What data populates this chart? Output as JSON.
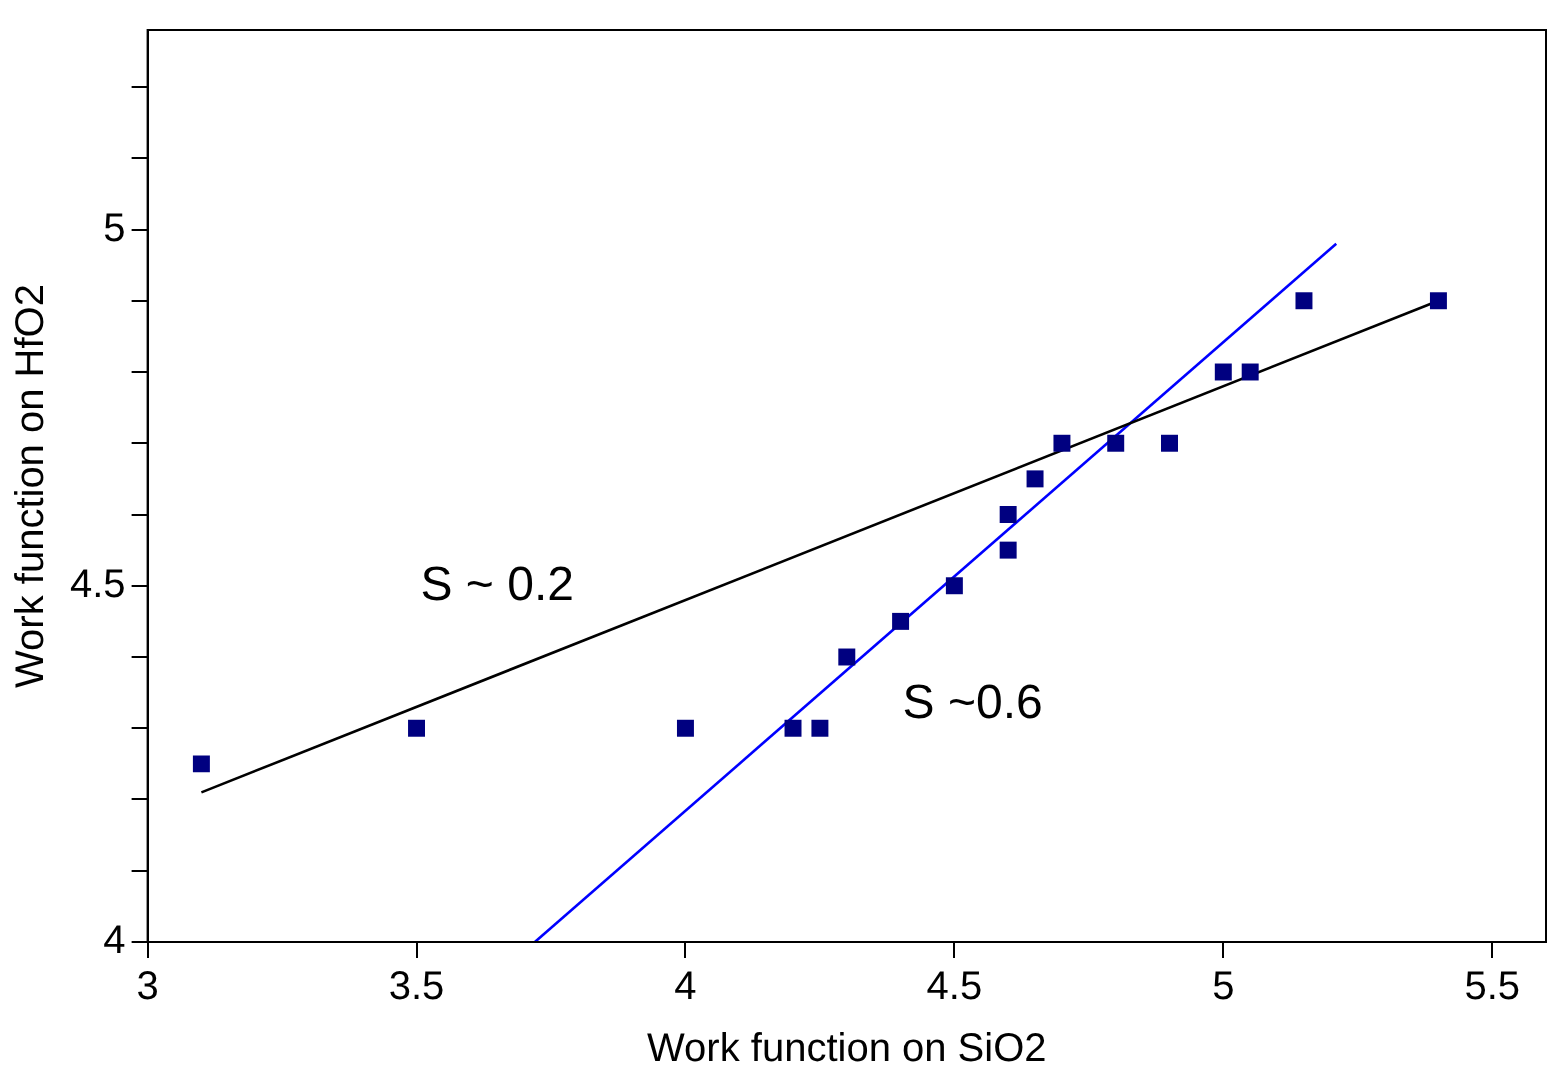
{
  "chart_data": {
    "type": "scatter",
    "xlabel": "Work function on SiO2",
    "ylabel": "Work function on HfO2",
    "xlim": [
      3,
      5.6
    ],
    "xticks": [
      3,
      3.5,
      4,
      4.5,
      5,
      5.5
    ],
    "ylim": [
      4,
      5.28
    ],
    "yticks": [
      4,
      {
        "value": 4.1,
        "label": null
      },
      {
        "value": 4.2,
        "label": null
      },
      {
        "value": 4.3,
        "label": null
      },
      {
        "value": 4.4,
        "label": null
      },
      4.5,
      {
        "value": 4.6,
        "label": null
      },
      {
        "value": 4.7,
        "label": null
      },
      {
        "value": 4.8,
        "label": null
      },
      {
        "value": 4.9,
        "label": null
      },
      5,
      {
        "value": 5.1,
        "label": null
      },
      {
        "value": 5.2,
        "label": null
      }
    ],
    "grid": false,
    "legend": false,
    "series": [
      {
        "marker": "square",
        "color": "#000080",
        "x": [
          3.1,
          3.5,
          4.0,
          4.2,
          4.25,
          4.3,
          4.4,
          4.5,
          4.6,
          4.6,
          4.65,
          4.7,
          4.8,
          4.9,
          5.0,
          5.05,
          5.15,
          5.4
        ],
        "values": [
          4.25,
          4.3,
          4.3,
          4.3,
          4.3,
          4.4,
          4.45,
          4.5,
          4.55,
          4.6,
          4.65,
          4.7,
          4.7,
          4.7,
          4.8,
          4.8,
          4.9,
          4.9
        ]
      },
      {
        "type": "line",
        "marker": "none",
        "color": "#000000",
        "x": [
          3.1,
          5.4
        ],
        "values": [
          4.21,
          4.9
        ]
      },
      {
        "type": "line",
        "marker": "none",
        "color": "#0000ff",
        "x": [
          3.72,
          5.21
        ],
        "values": [
          4.0,
          4.98
        ]
      }
    ],
    "annotations": [
      "S ~ 0.2",
      "S ~0.6"
    ]
  }
}
